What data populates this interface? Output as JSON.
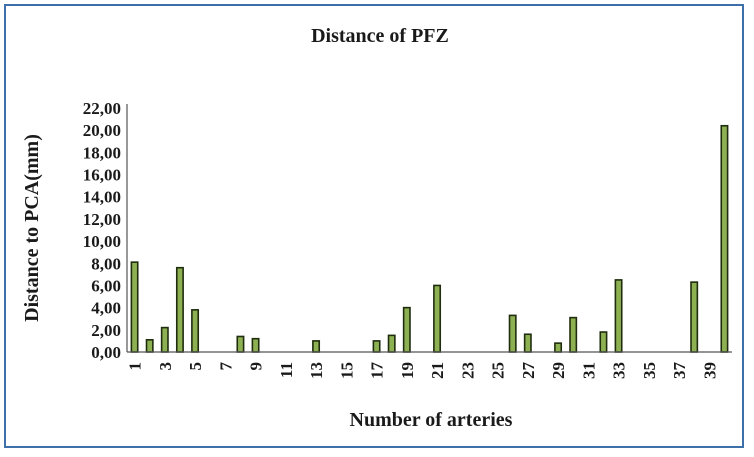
{
  "chart_data": {
    "type": "bar",
    "title": "Distance of PFZ",
    "xlabel": "Number of arteries",
    "ylabel": "Distance to PCA(mm)",
    "ylim": [
      0,
      22
    ],
    "y_ticks": [
      "0,00",
      "2,00",
      "4,00",
      "6,00",
      "8,00",
      "10,00",
      "12,00",
      "14,00",
      "16,00",
      "18,00",
      "20,00",
      "22,00"
    ],
    "x_tick_labels": [
      "1",
      "3",
      "5",
      "7",
      "9",
      "11",
      "13",
      "15",
      "17",
      "19",
      "21",
      "23",
      "25",
      "27",
      "29",
      "31",
      "33",
      "35",
      "37",
      "39"
    ],
    "categories": [
      "1",
      "2",
      "3",
      "4",
      "5",
      "6",
      "7",
      "8",
      "9",
      "10",
      "11",
      "12",
      "13",
      "14",
      "15",
      "16",
      "17",
      "18",
      "19",
      "20",
      "21",
      "22",
      "23",
      "24",
      "25",
      "26",
      "27",
      "28",
      "29",
      "30",
      "31",
      "32",
      "33",
      "34",
      "35",
      "36",
      "37",
      "38",
      "39",
      "40"
    ],
    "values": [
      8.1,
      1.1,
      2.2,
      7.6,
      3.8,
      0,
      0,
      1.4,
      1.2,
      0,
      0,
      0,
      1.0,
      0,
      0,
      0,
      1.0,
      1.5,
      4.0,
      0,
      6.0,
      0,
      0,
      0,
      0,
      3.3,
      1.6,
      0,
      0.8,
      3.1,
      0,
      1.8,
      6.5,
      0,
      0,
      0,
      0,
      6.3,
      0,
      20.4
    ],
    "grid": false,
    "legend": "none"
  }
}
